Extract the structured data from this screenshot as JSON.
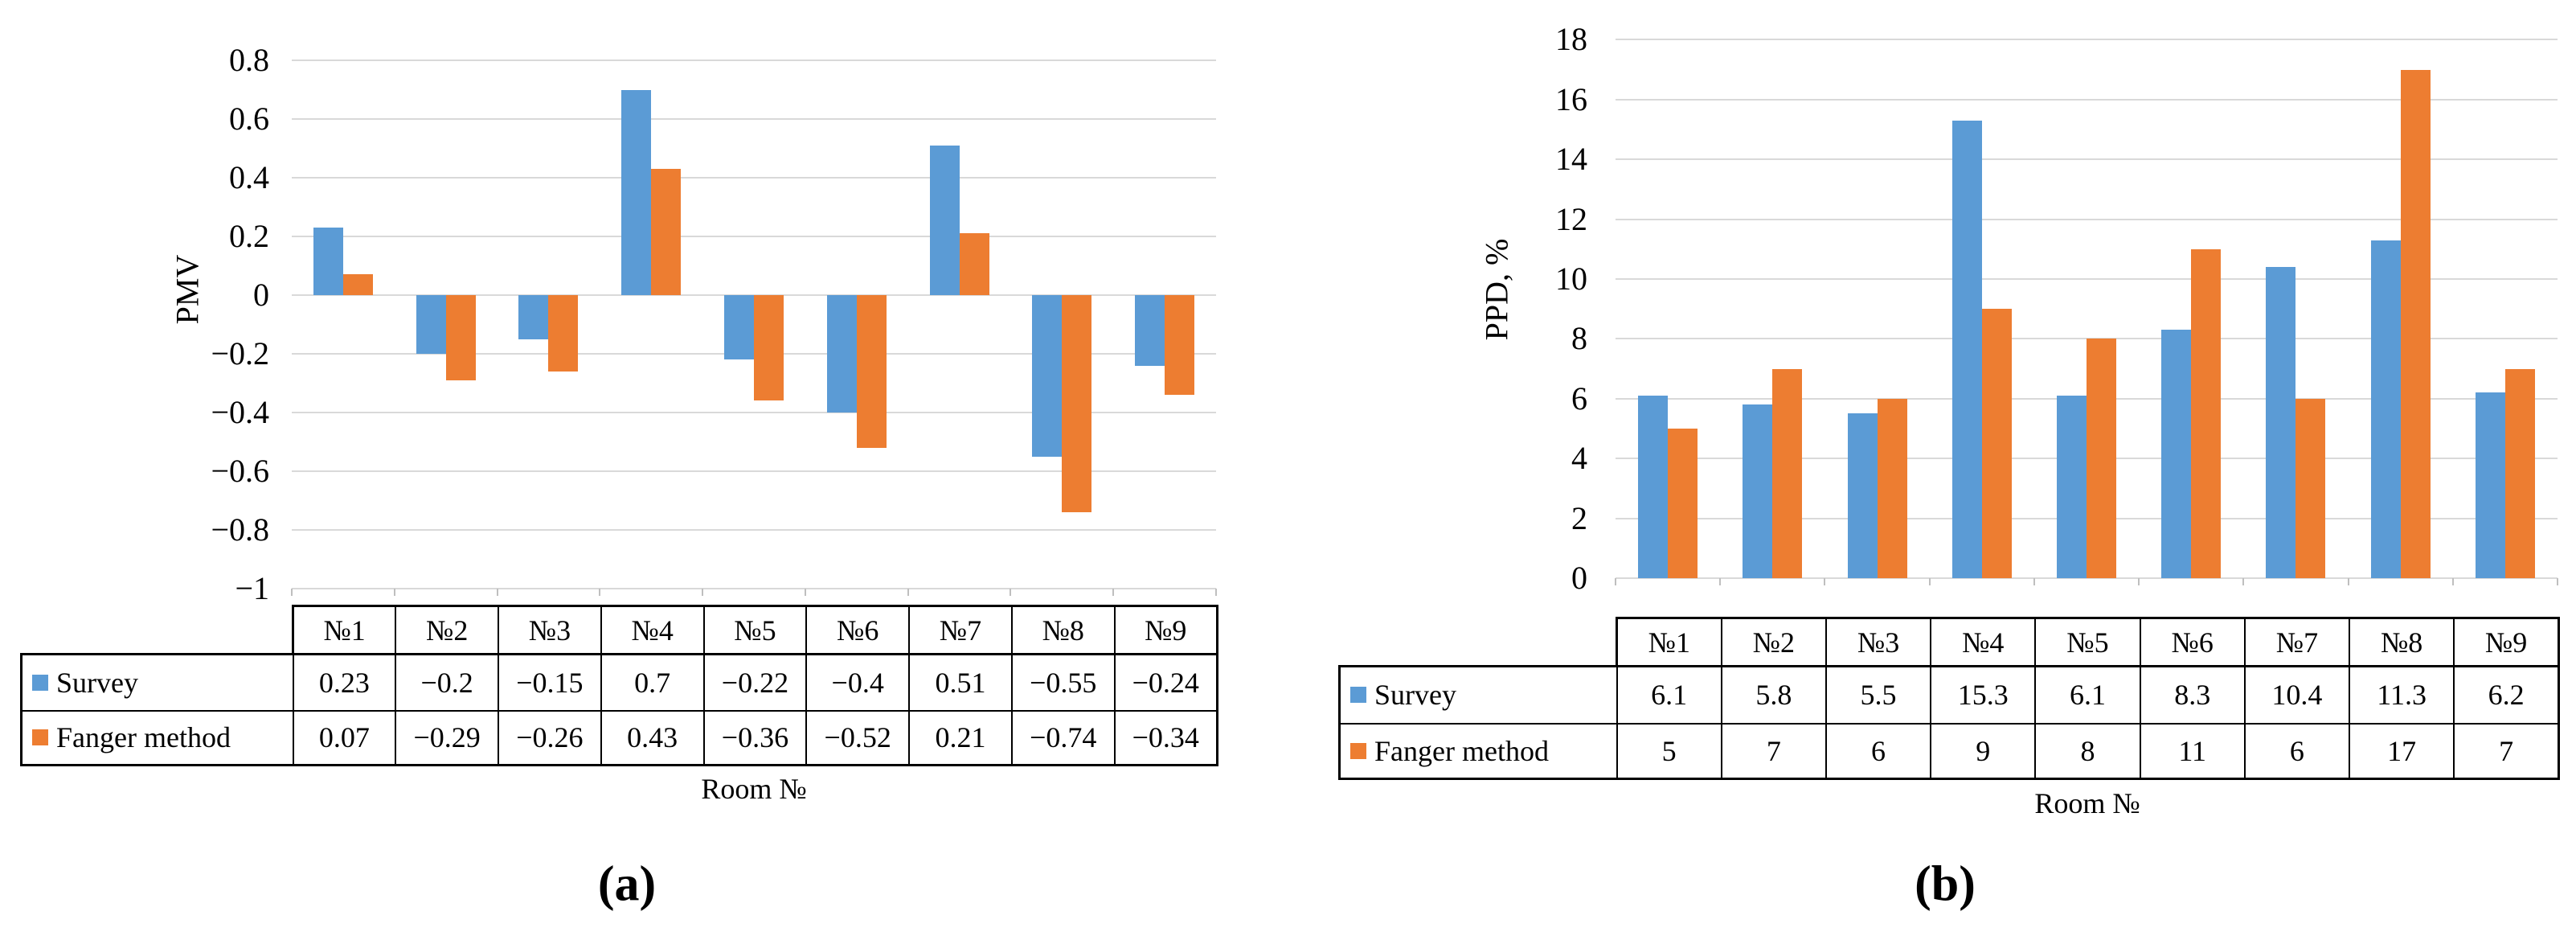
{
  "colors": {
    "survey": "#5B9BD5",
    "fanger_method": "#ED7D31",
    "gridline": "#D9D9D9",
    "axis_tick": "#BFBFBF",
    "table_border": "#000000",
    "text": "#000000"
  },
  "chart_data": [
    {
      "type": "bar",
      "panel": "a",
      "caption": "(a)",
      "title": "",
      "xlabel": "Room №",
      "ylabel": "PMV",
      "categories": [
        "№1",
        "№2",
        "№3",
        "№4",
        "№5",
        "№6",
        "№7",
        "№8",
        "№9"
      ],
      "series": [
        {
          "name": "Survey",
          "color": "#5B9BD5",
          "values": [
            0.23,
            -0.2,
            -0.15,
            0.7,
            -0.22,
            -0.4,
            0.51,
            -0.55,
            -0.24
          ]
        },
        {
          "name": "Fanger method",
          "color": "#ED7D31",
          "values": [
            0.07,
            -0.29,
            -0.26,
            0.43,
            -0.36,
            -0.52,
            0.21,
            -0.74,
            -0.34
          ]
        }
      ],
      "ylim": [
        -1,
        0.8
      ],
      "ytick_step": 0.2,
      "ytick_labels": [
        "0.8",
        "0.6",
        "0.4",
        "0.2",
        "0",
        "−0.2",
        "−0.4",
        "−0.6",
        "−0.8",
        "−1"
      ],
      "grid": true,
      "legend_position": "data-table",
      "table_values": [
        [
          "0.23",
          "−0.2",
          "−0.15",
          "0.7",
          "−0.22",
          "−0.4",
          "0.51",
          "−0.55",
          "−0.24"
        ],
        [
          "0.07",
          "−0.29",
          "−0.26",
          "0.43",
          "−0.36",
          "−0.52",
          "0.21",
          "−0.74",
          "−0.34"
        ]
      ]
    },
    {
      "type": "bar",
      "panel": "b",
      "caption": "(b)",
      "title": "",
      "xlabel": "Room №",
      "ylabel": "PPD, %",
      "categories": [
        "№1",
        "№2",
        "№3",
        "№4",
        "№5",
        "№6",
        "№7",
        "№8",
        "№9"
      ],
      "series": [
        {
          "name": "Survey",
          "color": "#5B9BD5",
          "values": [
            6.1,
            5.8,
            5.5,
            15.3,
            6.1,
            8.3,
            10.4,
            11.3,
            6.2
          ]
        },
        {
          "name": "Fanger method",
          "color": "#ED7D31",
          "values": [
            5,
            7,
            6,
            9,
            8,
            11,
            6,
            17,
            7
          ]
        }
      ],
      "ylim": [
        0,
        18
      ],
      "ytick_step": 2,
      "ytick_labels": [
        "18",
        "16",
        "14",
        "12",
        "10",
        "8",
        "6",
        "4",
        "2",
        "0"
      ],
      "grid": true,
      "legend_position": "data-table",
      "table_values": [
        [
          "6.1",
          "5.8",
          "5.5",
          "15.3",
          "6.1",
          "8.3",
          "10.4",
          "11.3",
          "6.2"
        ],
        [
          "5",
          "7",
          "6",
          "9",
          "8",
          "11",
          "6",
          "17",
          "7"
        ]
      ]
    }
  ]
}
